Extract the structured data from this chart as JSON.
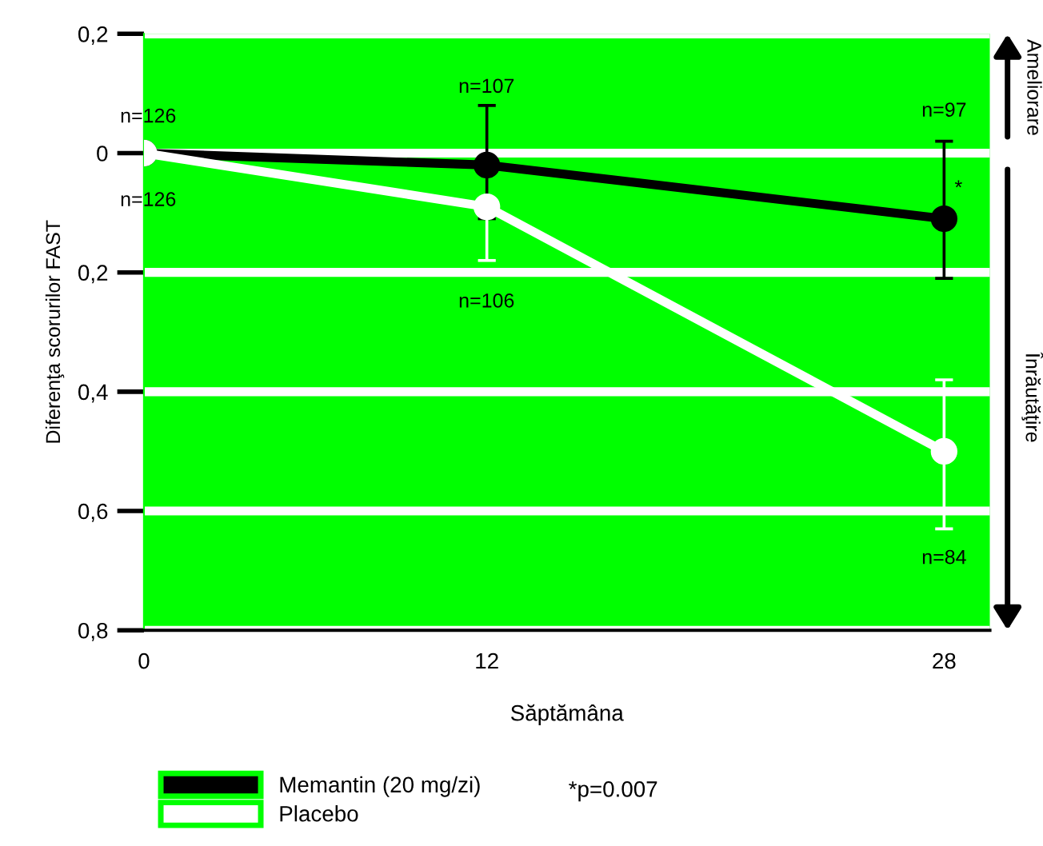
{
  "chart_data": {
    "type": "line",
    "xlabel": "Săptămâna",
    "ylabel": "Diferenţa scorurilor FAST",
    "x": [
      0,
      12,
      28
    ],
    "series": [
      {
        "name": "Memantin (20 mg/zi)",
        "color": "#000000",
        "values": [
          0,
          0.02,
          0.11
        ],
        "errors": [
          null,
          [
            -0.08,
            0.11
          ],
          [
            -0.02,
            0.21
          ]
        ]
      },
      {
        "name": "Placebo",
        "color": "#ffffff",
        "values": [
          0,
          0.09,
          0.5
        ],
        "errors": [
          null,
          [
            0.09,
            0.18
          ],
          [
            0.38,
            0.63
          ]
        ]
      }
    ],
    "xlim": [
      0,
      29.6
    ],
    "xticks": [
      0,
      12,
      28
    ],
    "ylim": [
      0.8,
      -0.2
    ],
    "yticks": [
      {
        "value": -0.2,
        "label": "0,2"
      },
      0,
      {
        "value": 0.2,
        "label": "0,2"
      },
      {
        "value": 0.4,
        "label": "0,4"
      },
      {
        "value": 0.6,
        "label": "0,6"
      },
      {
        "value": 0.8,
        "label": "0,8"
      }
    ],
    "grid": "y",
    "legend": "bottom",
    "marker": "circle",
    "line_style": "solid",
    "annotations": [
      "n=126",
      "n=126",
      "n=107",
      "n=106",
      "n=97",
      "n=84",
      "*",
      "*p=0.007",
      "Ameliorare",
      "Înrăutăţire"
    ]
  }
}
